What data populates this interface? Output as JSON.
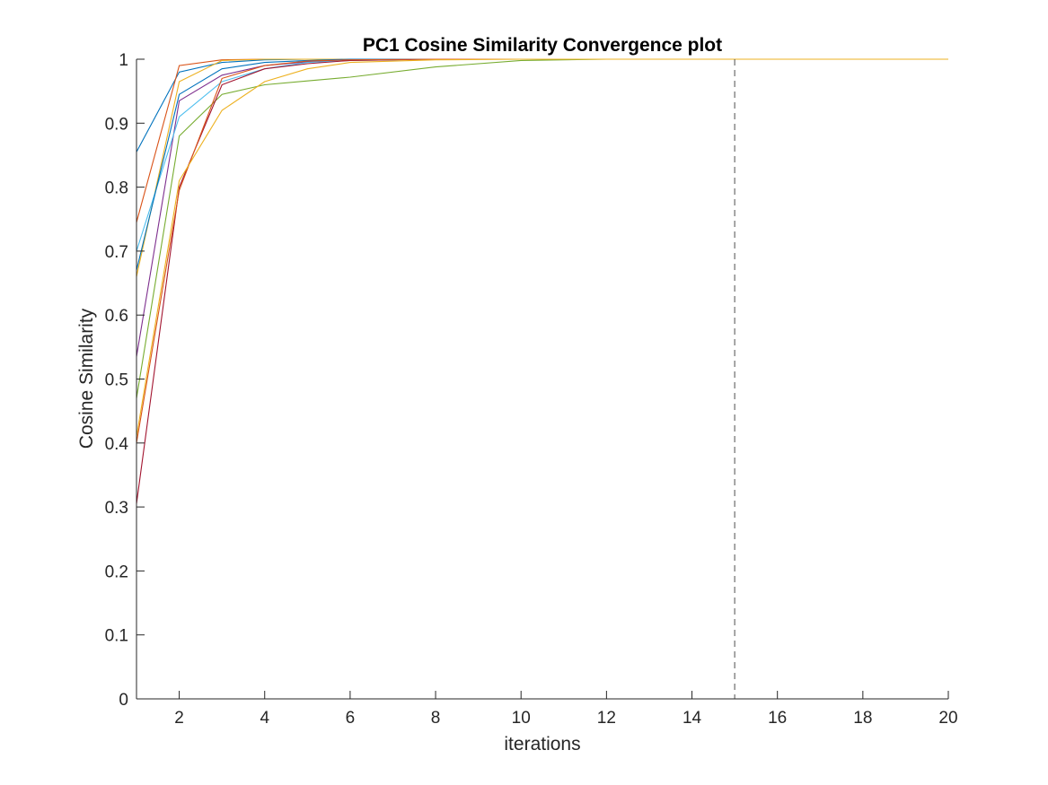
{
  "chart_data": {
    "type": "line",
    "title": "PC1 Cosine Similarity Convergence plot",
    "xlabel": "iterations",
    "ylabel": "Cosine Similarity",
    "xlim": [
      1,
      20
    ],
    "ylim": [
      0,
      1
    ],
    "xticks": [
      2,
      4,
      6,
      8,
      10,
      12,
      14,
      16,
      18,
      20
    ],
    "yticks": [
      0,
      0.1,
      0.2,
      0.3,
      0.4,
      0.5,
      0.6,
      0.7,
      0.8,
      0.9,
      1
    ],
    "ytick_labels": [
      "0",
      "0.1",
      "0.2",
      "0.3",
      "0.4",
      "0.5",
      "0.6",
      "0.7",
      "0.8",
      "0.9",
      "1"
    ],
    "grid": false,
    "legend": "none",
    "reference_line": {
      "x": 15,
      "style": "dashed",
      "color": "#4d4d4d"
    },
    "series": [
      {
        "color": "#0072BD",
        "x": [
          1,
          2,
          3,
          4,
          5,
          6,
          8,
          10,
          12,
          14,
          16,
          18,
          20
        ],
        "values": [
          0.855,
          0.98,
          0.995,
          0.999,
          1,
          1,
          1,
          1,
          1,
          1,
          1,
          1,
          1
        ]
      },
      {
        "color": "#D95319",
        "x": [
          1,
          2,
          3,
          4,
          5,
          6,
          8,
          10,
          12,
          14,
          16,
          18,
          20
        ],
        "values": [
          0.745,
          0.99,
          0.999,
          1,
          1,
          1,
          1,
          1,
          1,
          1,
          1,
          1,
          1
        ]
      },
      {
        "color": "#EDB120",
        "x": [
          1,
          2,
          3,
          4,
          5,
          6,
          8,
          10,
          12,
          14,
          16,
          18,
          20
        ],
        "values": [
          0.66,
          0.965,
          0.998,
          1,
          1,
          1,
          1,
          1,
          1,
          1,
          1,
          1,
          1
        ]
      },
      {
        "color": "#7E2F8E",
        "x": [
          1,
          2,
          3,
          4,
          5,
          6,
          8,
          10,
          12,
          14,
          16,
          18,
          20
        ],
        "values": [
          0.535,
          0.935,
          0.975,
          0.99,
          0.996,
          0.999,
          1,
          1,
          1,
          1,
          1,
          1,
          1
        ]
      },
      {
        "color": "#77AC30",
        "x": [
          1,
          2,
          3,
          4,
          5,
          6,
          8,
          10,
          12,
          14,
          16,
          18,
          20
        ],
        "values": [
          0.47,
          0.88,
          0.945,
          0.96,
          0.966,
          0.972,
          0.988,
          0.998,
          1,
          1,
          1,
          1,
          1
        ]
      },
      {
        "color": "#4DBEEE",
        "x": [
          1,
          2,
          3,
          4,
          5,
          6,
          8,
          10,
          12,
          14,
          16,
          18,
          20
        ],
        "values": [
          0.7,
          0.91,
          0.965,
          0.985,
          0.995,
          0.998,
          1,
          1,
          1,
          1,
          1,
          1,
          1
        ]
      },
      {
        "color": "#A2142F",
        "x": [
          1,
          2,
          3,
          4,
          5,
          6,
          8,
          10,
          12,
          14,
          16,
          18,
          20
        ],
        "values": [
          0.305,
          0.8,
          0.96,
          0.985,
          0.993,
          0.998,
          1,
          1,
          1,
          1,
          1,
          1,
          1
        ]
      },
      {
        "color": "#0072BD",
        "x": [
          1,
          2,
          3,
          4,
          5,
          6,
          8,
          10,
          12,
          14,
          16,
          18,
          20
        ],
        "values": [
          0.67,
          0.945,
          0.985,
          0.995,
          0.998,
          1,
          1,
          1,
          1,
          1,
          1,
          1,
          1
        ]
      },
      {
        "color": "#D95319",
        "x": [
          1,
          2,
          3,
          4,
          5,
          6,
          8,
          10,
          12,
          14,
          16,
          18,
          20
        ],
        "values": [
          0.4,
          0.795,
          0.97,
          0.99,
          0.997,
          0.999,
          1,
          1,
          1,
          1,
          1,
          1,
          1
        ]
      },
      {
        "color": "#EDB120",
        "x": [
          1,
          2,
          3,
          4,
          5,
          6,
          8,
          10,
          12,
          14,
          16,
          18,
          20
        ],
        "values": [
          0.41,
          0.81,
          0.92,
          0.965,
          0.985,
          0.995,
          0.999,
          1,
          1,
          1,
          1,
          1,
          1
        ]
      }
    ]
  }
}
